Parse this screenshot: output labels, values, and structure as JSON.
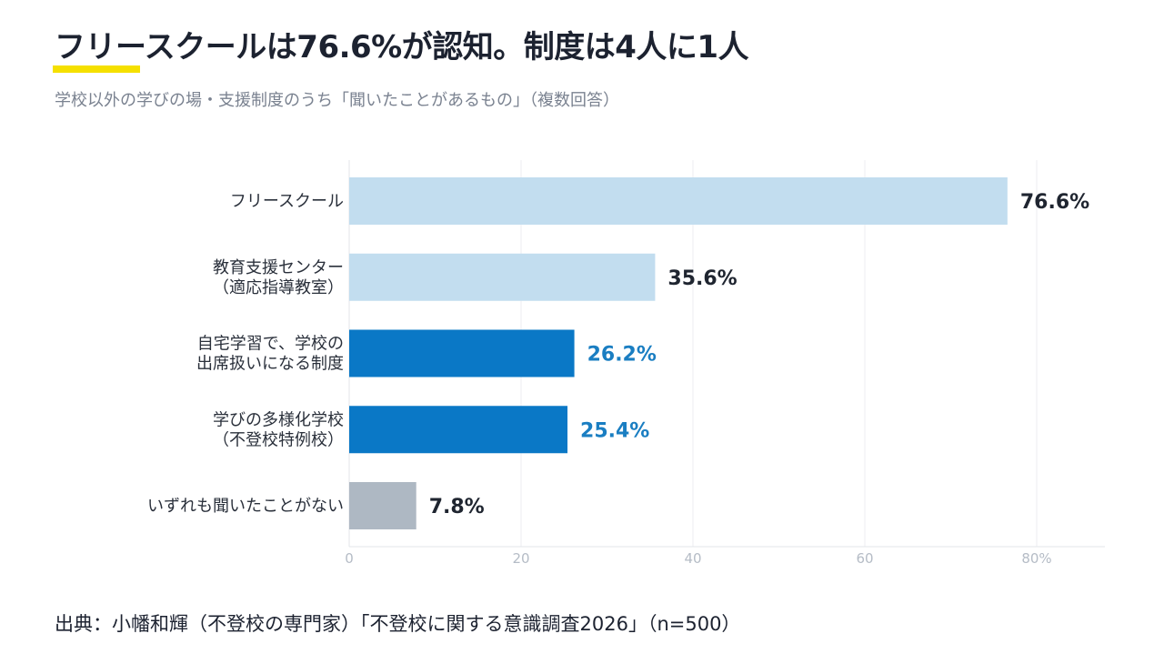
{
  "header": {
    "title": "フリースクールは76.6%が認知。制度は4人に1人",
    "subtitle": "学校以外の学びの場・支援制度のうち「聞いたことがあるもの」（複数回答）"
  },
  "footer": {
    "source": "出典：小幡和輝（不登校の専門家）「不登校に関する意識調査2026」（n=500）"
  },
  "chart_data": {
    "type": "bar",
    "orientation": "horizontal",
    "categories": [
      [
        "フリースクール"
      ],
      [
        "教育支援センター",
        "（適応指導教室）"
      ],
      [
        "自宅学習で、学校の",
        "出席扱いになる制度"
      ],
      [
        "学びの多様化学校",
        "（不登校特例校）"
      ],
      [
        "いずれも聞いたことがない"
      ]
    ],
    "values": [
      76.6,
      35.6,
      26.2,
      25.4,
      7.8
    ],
    "value_labels": [
      "76.6%",
      "35.6%",
      "26.2%",
      "25.4%",
      "7.8%"
    ],
    "bar_colors": [
      "#c2ddef",
      "#c2ddef",
      "#0a78c6",
      "#0a78c6",
      "#aeb8c3"
    ],
    "label_colors": [
      "#1f2530",
      "#1f2530",
      "#1a7ec2",
      "#1a7ec2",
      "#1f2530"
    ],
    "x_ticks": [
      "0",
      "20",
      "40",
      "60",
      "80%"
    ],
    "x_tick_values": [
      0,
      20,
      40,
      60,
      80
    ],
    "xlim": [
      0,
      88
    ],
    "grid": true,
    "title": "",
    "xlabel": "",
    "ylabel": ""
  }
}
